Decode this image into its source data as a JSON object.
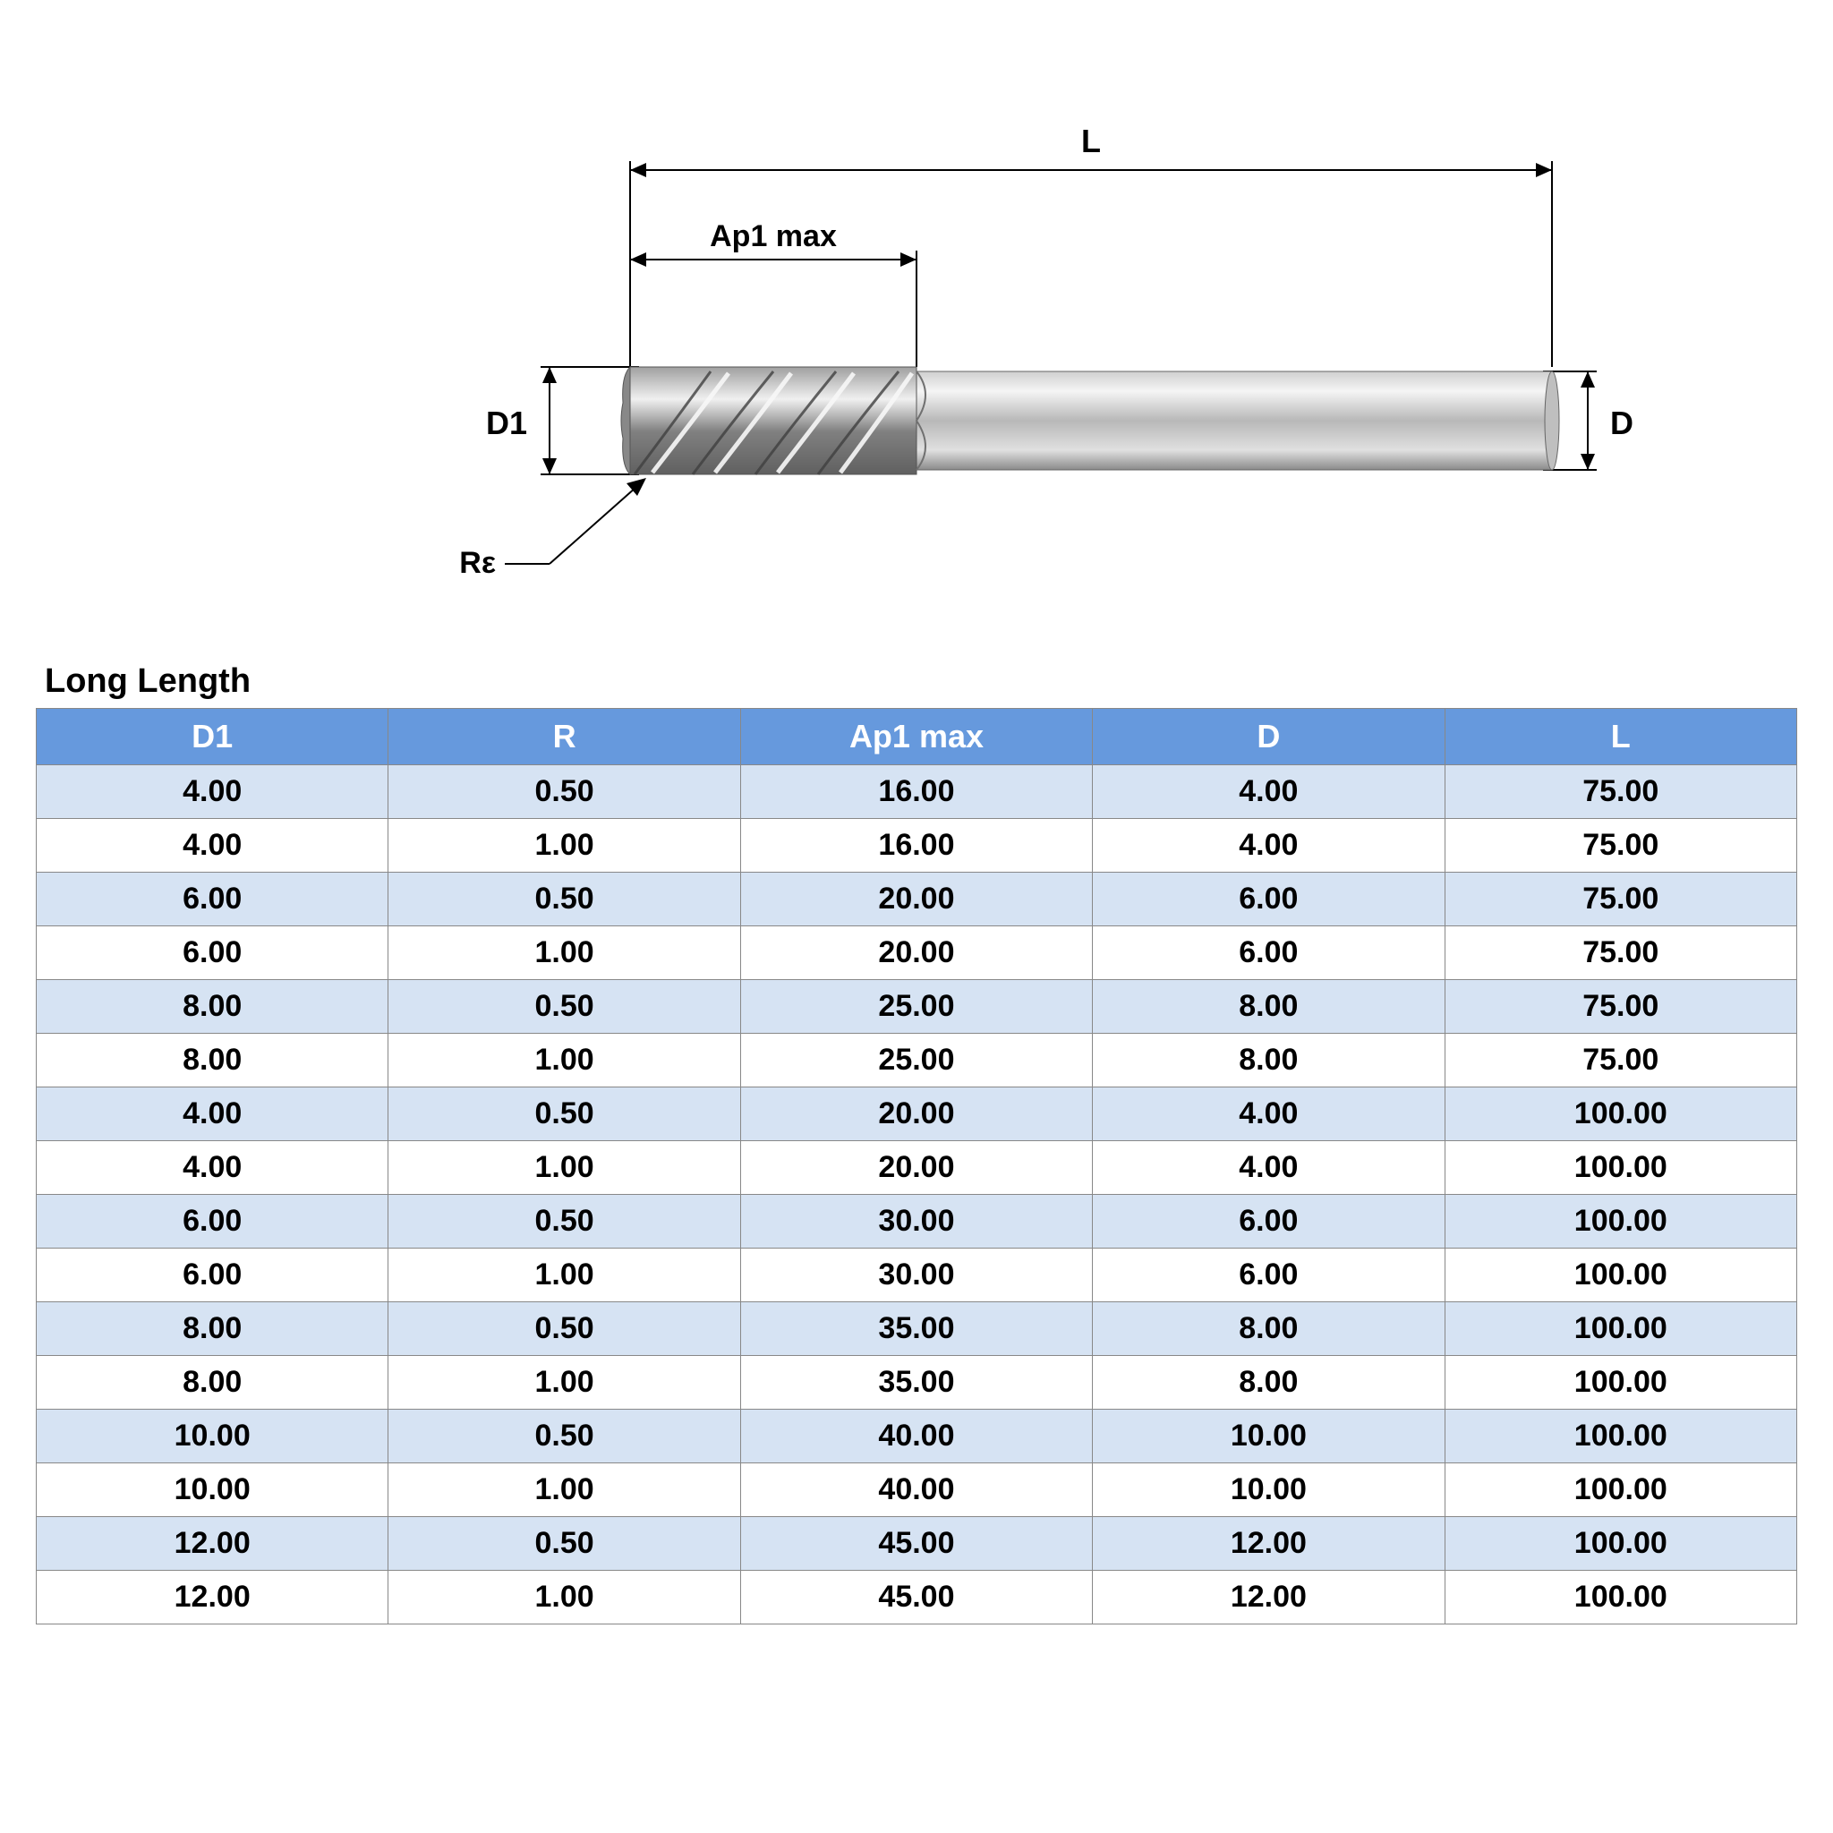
{
  "diagram": {
    "labels": {
      "L": "L",
      "Ap1max": "Ap1 max",
      "D1": "D1",
      "D": "D",
      "Re": "Rε"
    },
    "colors": {
      "line": "#000000",
      "text": "#000000",
      "tool_light": "#e8e8e8",
      "tool_mid": "#bfbfbf",
      "tool_dark": "#8a8a8a",
      "flute_dark": "#505050",
      "flute_light": "#f5f5f5"
    },
    "label_fontsize": 36,
    "label_fontweight": "bold"
  },
  "section_title": "Long Length",
  "table": {
    "type": "table",
    "header_bg": "#6699dd",
    "header_fg": "#ffffff",
    "row_odd_bg": "#d6e3f3",
    "row_even_bg": "#ffffff",
    "border_color": "#888888",
    "header_fontsize": 36,
    "cell_fontsize": 34,
    "font_weight": "bold",
    "columns": [
      "D1",
      "R",
      "Ap1 max",
      "D",
      "L"
    ],
    "rows": [
      [
        "4.00",
        "0.50",
        "16.00",
        "4.00",
        "75.00"
      ],
      [
        "4.00",
        "1.00",
        "16.00",
        "4.00",
        "75.00"
      ],
      [
        "6.00",
        "0.50",
        "20.00",
        "6.00",
        "75.00"
      ],
      [
        "6.00",
        "1.00",
        "20.00",
        "6.00",
        "75.00"
      ],
      [
        "8.00",
        "0.50",
        "25.00",
        "8.00",
        "75.00"
      ],
      [
        "8.00",
        "1.00",
        "25.00",
        "8.00",
        "75.00"
      ],
      [
        "4.00",
        "0.50",
        "20.00",
        "4.00",
        "100.00"
      ],
      [
        "4.00",
        "1.00",
        "20.00",
        "4.00",
        "100.00"
      ],
      [
        "6.00",
        "0.50",
        "30.00",
        "6.00",
        "100.00"
      ],
      [
        "6.00",
        "1.00",
        "30.00",
        "6.00",
        "100.00"
      ],
      [
        "8.00",
        "0.50",
        "35.00",
        "8.00",
        "100.00"
      ],
      [
        "8.00",
        "1.00",
        "35.00",
        "8.00",
        "100.00"
      ],
      [
        "10.00",
        "0.50",
        "40.00",
        "10.00",
        "100.00"
      ],
      [
        "10.00",
        "1.00",
        "40.00",
        "10.00",
        "100.00"
      ],
      [
        "12.00",
        "0.50",
        "45.00",
        "12.00",
        "100.00"
      ],
      [
        "12.00",
        "1.00",
        "45.00",
        "12.00",
        "100.00"
      ]
    ]
  }
}
